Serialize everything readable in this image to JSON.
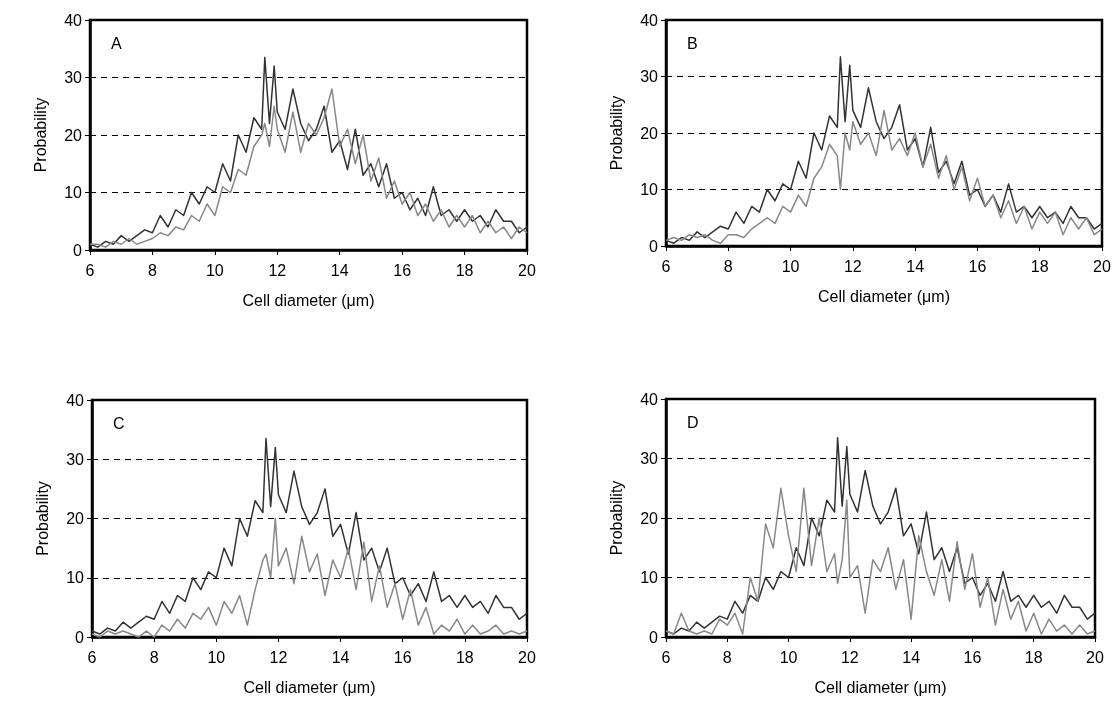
{
  "chart_data": [
    {
      "type": "line",
      "title": "A",
      "xlabel": "Cell diameter (μm)",
      "ylabel": "Probability",
      "xlim": [
        6,
        20
      ],
      "xticks": [
        6,
        8,
        10,
        12,
        14,
        16,
        18,
        20
      ],
      "ylim": [
        0,
        40
      ],
      "yticks": [
        0,
        10,
        20,
        30,
        40
      ],
      "grid": "y",
      "line_style": "solid",
      "x": [
        6,
        6.25,
        6.5,
        6.75,
        7,
        7.25,
        7.5,
        7.75,
        8,
        8.25,
        8.5,
        8.75,
        9,
        9.25,
        9.5,
        9.75,
        10,
        10.25,
        10.5,
        10.75,
        11,
        11.25,
        11.5,
        11.6,
        11.75,
        11.9,
        12,
        12.25,
        12.5,
        12.75,
        13,
        13.25,
        13.5,
        13.75,
        14,
        14.25,
        14.5,
        14.75,
        15,
        15.25,
        15.5,
        15.75,
        16,
        16.25,
        16.5,
        16.75,
        17,
        17.25,
        17.5,
        17.75,
        18,
        18.25,
        18.5,
        18.75,
        19,
        19.25,
        19.5,
        19.75,
        20
      ],
      "series": [
        {
          "color": "#333333",
          "values": [
            1,
            0.5,
            1.5,
            1,
            2.5,
            1.5,
            2.5,
            3.5,
            3,
            6,
            4,
            7,
            6,
            10,
            8,
            11,
            10,
            15,
            12,
            20,
            17,
            23,
            21,
            33.5,
            22,
            32,
            24,
            21,
            28,
            22,
            19,
            21,
            25,
            17,
            19,
            14,
            21,
            13,
            15,
            11,
            15,
            9,
            10,
            7,
            9,
            6,
            11,
            6,
            7,
            5,
            7,
            5,
            6,
            4,
            7,
            5,
            5,
            3,
            4
          ]
        },
        {
          "color": "#888888",
          "values": [
            1,
            1,
            0.5,
            1.5,
            1,
            2,
            1,
            1.5,
            2,
            3,
            2.5,
            4,
            3.5,
            6,
            5,
            8,
            6,
            11,
            10,
            14,
            13,
            18,
            20,
            22,
            18,
            25,
            21,
            17,
            24,
            17,
            22,
            20,
            23,
            28,
            18,
            21,
            15,
            20,
            12,
            16,
            9,
            12,
            8,
            10,
            6,
            8,
            5,
            7,
            4,
            6,
            4,
            6,
            3,
            5,
            3,
            4,
            2,
            4,
            3
          ]
        }
      ]
    },
    {
      "type": "line",
      "title": "B",
      "xlabel": "Cell diameter (μm)",
      "ylabel": "Probability",
      "xlim": [
        6,
        20
      ],
      "xticks": [
        6,
        8,
        10,
        12,
        14,
        16,
        18,
        20
      ],
      "ylim": [
        0,
        40
      ],
      "yticks": [
        0,
        10,
        20,
        30,
        40
      ],
      "grid": "y",
      "line_style": "solid",
      "x": [
        6,
        6.25,
        6.5,
        6.75,
        7,
        7.25,
        7.5,
        7.75,
        8,
        8.25,
        8.5,
        8.75,
        9,
        9.25,
        9.5,
        9.75,
        10,
        10.25,
        10.5,
        10.75,
        11,
        11.25,
        11.5,
        11.6,
        11.75,
        11.9,
        12,
        12.25,
        12.5,
        12.75,
        13,
        13.25,
        13.5,
        13.75,
        14,
        14.25,
        14.5,
        14.75,
        15,
        15.25,
        15.5,
        15.75,
        16,
        16.25,
        16.5,
        16.75,
        17,
        17.25,
        17.5,
        17.75,
        18,
        18.25,
        18.5,
        18.75,
        19,
        19.25,
        19.5,
        19.75,
        20
      ],
      "series": [
        {
          "color": "#333333",
          "values": [
            1,
            0.5,
            1.5,
            1,
            2.5,
            1.5,
            2.5,
            3.5,
            3,
            6,
            4,
            7,
            6,
            10,
            8,
            11,
            10,
            15,
            12,
            20,
            17,
            23,
            21,
            33.5,
            22,
            32,
            24,
            21,
            28,
            22,
            19,
            21,
            25,
            17,
            19,
            14,
            21,
            13,
            15,
            11,
            15,
            9,
            10,
            7,
            9,
            6,
            11,
            6,
            7,
            5,
            7,
            5,
            6,
            4,
            7,
            5,
            5,
            3,
            4
          ]
        },
        {
          "color": "#888888",
          "values": [
            1,
            1.5,
            1,
            2,
            1.5,
            2,
            1,
            0.5,
            2,
            2,
            1.5,
            3,
            4,
            5,
            4,
            7,
            6,
            9,
            7,
            12,
            14,
            18,
            16,
            10,
            20,
            17,
            22,
            18,
            20,
            16,
            24,
            17,
            19,
            16,
            20,
            14,
            18,
            12,
            16,
            10,
            14,
            8,
            12,
            7,
            9,
            5,
            8,
            4,
            7,
            3,
            6,
            4,
            6,
            2,
            5,
            3,
            5,
            2,
            3
          ]
        }
      ]
    },
    {
      "type": "line",
      "title": "C",
      "xlabel": "Cell diameter (μm)",
      "ylabel": "Probability",
      "xlim": [
        6,
        20
      ],
      "xticks": [
        6,
        8,
        10,
        12,
        14,
        16,
        18,
        20
      ],
      "ylim": [
        0,
        40
      ],
      "yticks": [
        0,
        10,
        20,
        30,
        40
      ],
      "grid": "y",
      "line_style": "solid",
      "x": [
        6,
        6.25,
        6.5,
        6.75,
        7,
        7.25,
        7.5,
        7.75,
        8,
        8.25,
        8.5,
        8.75,
        9,
        9.25,
        9.5,
        9.75,
        10,
        10.25,
        10.5,
        10.75,
        11,
        11.25,
        11.5,
        11.6,
        11.75,
        11.9,
        12,
        12.25,
        12.5,
        12.75,
        13,
        13.25,
        13.5,
        13.75,
        14,
        14.25,
        14.5,
        14.75,
        15,
        15.25,
        15.5,
        15.75,
        16,
        16.25,
        16.5,
        16.75,
        17,
        17.25,
        17.5,
        17.75,
        18,
        18.25,
        18.5,
        18.75,
        19,
        19.25,
        19.5,
        19.75,
        20
      ],
      "series": [
        {
          "color": "#333333",
          "values": [
            1,
            0.5,
            1.5,
            1,
            2.5,
            1.5,
            2.5,
            3.5,
            3,
            6,
            4,
            7,
            6,
            10,
            8,
            11,
            10,
            15,
            12,
            20,
            17,
            23,
            21,
            33.5,
            22,
            32,
            24,
            21,
            28,
            22,
            19,
            21,
            25,
            17,
            19,
            14,
            21,
            13,
            15,
            11,
            15,
            9,
            10,
            7,
            9,
            6,
            11,
            6,
            7,
            5,
            7,
            5,
            6,
            4,
            7,
            5,
            5,
            3,
            4
          ]
        },
        {
          "color": "#888888",
          "values": [
            0.5,
            0,
            1,
            0.5,
            1,
            0.5,
            0,
            1,
            0,
            2,
            1,
            3,
            1.5,
            4,
            3,
            5,
            2,
            6,
            4,
            7,
            2,
            8,
            13,
            14,
            10,
            20,
            12,
            15,
            9,
            17,
            11,
            14,
            7,
            13,
            10,
            15,
            8,
            16,
            6,
            12,
            5,
            9,
            3,
            8,
            2,
            5,
            0.5,
            2,
            1,
            3,
            0.5,
            2,
            0.5,
            1,
            2,
            0.5,
            1,
            0.5,
            1
          ]
        }
      ]
    },
    {
      "type": "line",
      "title": "D",
      "xlabel": "Cell diameter (μm)",
      "ylabel": "Probability",
      "xlim": [
        6,
        20
      ],
      "xticks": [
        6,
        8,
        10,
        12,
        14,
        16,
        18,
        20
      ],
      "ylim": [
        0,
        40
      ],
      "yticks": [
        0,
        10,
        20,
        30,
        40
      ],
      "grid": "y",
      "line_style": "solid",
      "x": [
        6,
        6.25,
        6.5,
        6.75,
        7,
        7.25,
        7.5,
        7.75,
        8,
        8.25,
        8.5,
        8.75,
        9,
        9.25,
        9.5,
        9.75,
        10,
        10.25,
        10.5,
        10.75,
        11,
        11.25,
        11.5,
        11.6,
        11.75,
        11.9,
        12,
        12.25,
        12.5,
        12.75,
        13,
        13.25,
        13.5,
        13.75,
        14,
        14.25,
        14.5,
        14.75,
        15,
        15.25,
        15.5,
        15.75,
        16,
        16.25,
        16.5,
        16.75,
        17,
        17.25,
        17.5,
        17.75,
        18,
        18.25,
        18.5,
        18.75,
        19,
        19.25,
        19.5,
        19.75,
        20
      ],
      "series": [
        {
          "color": "#333333",
          "values": [
            1,
            0.5,
            1.5,
            1,
            2.5,
            1.5,
            2.5,
            3.5,
            3,
            6,
            4,
            7,
            6,
            10,
            8,
            11,
            10,
            15,
            12,
            20,
            17,
            23,
            21,
            33.5,
            22,
            32,
            24,
            21,
            28,
            22,
            19,
            21,
            25,
            17,
            19,
            14,
            21,
            13,
            15,
            11,
            15,
            9,
            10,
            7,
            9,
            6,
            11,
            6,
            7,
            5,
            7,
            5,
            6,
            4,
            7,
            5,
            5,
            3,
            4
          ]
        },
        {
          "color": "#888888",
          "values": [
            1,
            0.5,
            4,
            1,
            0.5,
            1,
            0.5,
            3,
            2,
            4,
            0.5,
            10,
            6,
            19,
            15,
            25,
            17,
            11,
            25,
            12,
            20,
            11,
            14,
            9,
            13,
            23,
            10,
            12,
            4,
            13,
            11,
            15,
            8,
            13,
            3,
            17,
            11,
            7,
            13,
            6,
            16,
            8,
            14,
            5,
            10,
            2,
            8,
            3,
            6,
            1,
            4,
            0.5,
            3,
            1,
            2,
            0.5,
            2,
            0.5,
            1
          ]
        }
      ]
    }
  ]
}
